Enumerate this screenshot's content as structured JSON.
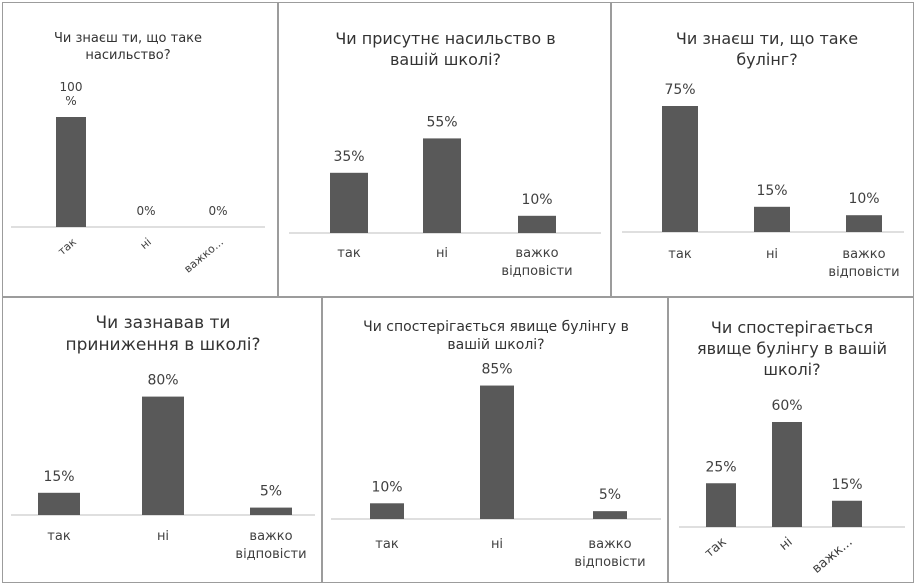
{
  "colors": {
    "bar": "#595959",
    "border": "#9c9c9c",
    "text": "#333333"
  },
  "chart_data": [
    {
      "type": "bar",
      "title": "Чи знаєш ти, що таке насильство?",
      "categories": [
        "так",
        "ні",
        "важко..."
      ],
      "value_labels": [
        "100 %",
        "0%",
        "0%"
      ],
      "values": [
        100,
        0,
        0
      ],
      "unit": "%",
      "ylim": [
        0,
        100
      ],
      "grid": false,
      "legend": "none"
    },
    {
      "type": "bar",
      "title": "Чи присутнє насильство в вашій школі?",
      "categories": [
        "так",
        "ні",
        "важко відповісти"
      ],
      "value_labels": [
        "35%",
        "55%",
        "10%"
      ],
      "values": [
        35,
        55,
        10
      ],
      "unit": "%",
      "ylim": [
        0,
        100
      ],
      "grid": false,
      "legend": "none"
    },
    {
      "type": "bar",
      "title": "Чи знаєш ти, що таке булінг?",
      "categories": [
        "так",
        "ні",
        "важко відповісти"
      ],
      "value_labels": [
        "75%",
        "15%",
        "10%"
      ],
      "values": [
        75,
        15,
        10
      ],
      "unit": "%",
      "ylim": [
        0,
        100
      ],
      "grid": false,
      "legend": "none"
    },
    {
      "type": "bar",
      "title": "Чи зазнавав ти приниження в школі?",
      "categories": [
        "так",
        "ні",
        "важко відповісти"
      ],
      "value_labels": [
        "15%",
        "80%",
        "5%"
      ],
      "values": [
        15,
        80,
        5
      ],
      "unit": "%",
      "ylim": [
        0,
        100
      ],
      "grid": false,
      "legend": "none"
    },
    {
      "type": "bar",
      "title": "Чи спостерігається явище булінгу в вашій школі?",
      "categories": [
        "так",
        "ні",
        "важко відповісти"
      ],
      "value_labels": [
        "10%",
        "85%",
        "5%"
      ],
      "values": [
        10,
        85,
        5
      ],
      "unit": "%",
      "ylim": [
        0,
        100
      ],
      "grid": false,
      "legend": "none"
    },
    {
      "type": "bar",
      "title": "Чи спостерігається явище булінгу в вашій школі?",
      "categories": [
        "так",
        "ні",
        "важк..."
      ],
      "value_labels": [
        "25%",
        "60%",
        "15%"
      ],
      "values": [
        25,
        60,
        15
      ],
      "unit": "%",
      "ylim": [
        0,
        100
      ],
      "grid": false,
      "legend": "none"
    }
  ]
}
